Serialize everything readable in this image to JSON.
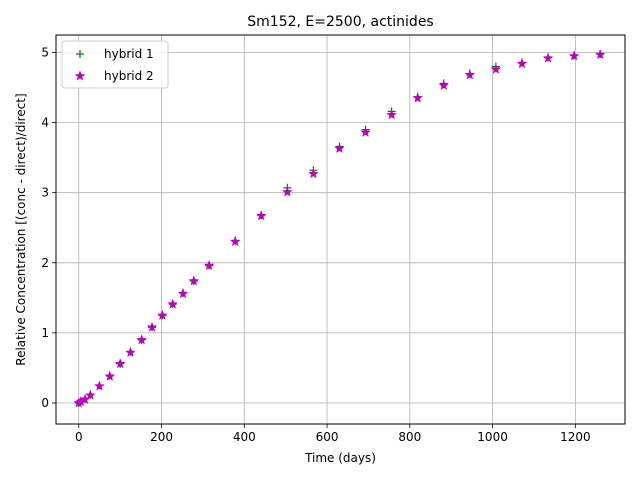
{
  "chart_data": {
    "type": "scatter",
    "title": "Sm152, E=2500, actinides",
    "xlabel": "Time (days)",
    "ylabel": "Relative Concentration [(conc - direct)/direct]",
    "xlim": [
      -55,
      1320
    ],
    "ylim": [
      -0.3,
      5.25
    ],
    "xticks": [
      0,
      200,
      400,
      600,
      800,
      1000,
      1200
    ],
    "yticks": [
      0,
      1,
      2,
      3,
      4,
      5
    ],
    "xtick_labels": [
      "0",
      "200",
      "400",
      "600",
      "800",
      "1000",
      "1200"
    ],
    "ytick_labels": [
      "0",
      "1",
      "2",
      "3",
      "4",
      "5"
    ],
    "grid": true,
    "legend_position": "top-left",
    "series": [
      {
        "name": "hybrid 1",
        "marker": "plus",
        "color": "#008000",
        "x": [
          0,
          5,
          15,
          28,
          50,
          75,
          100,
          125,
          152,
          177,
          202,
          227,
          252,
          278,
          315,
          378,
          441,
          504,
          567,
          630,
          693,
          756,
          819,
          882,
          945,
          1008,
          1071,
          1134,
          1197,
          1260
        ],
        "y": [
          0.0,
          0.02,
          0.06,
          0.12,
          0.25,
          0.39,
          0.56,
          0.73,
          0.9,
          1.08,
          1.25,
          1.41,
          1.57,
          1.74,
          1.96,
          2.32,
          2.68,
          3.07,
          3.32,
          3.66,
          3.9,
          4.16,
          4.37,
          4.56,
          4.7,
          4.8,
          4.86,
          4.93,
          4.96,
          4.98
        ]
      },
      {
        "name": "hybrid 2",
        "marker": "star",
        "color": "#c000c0",
        "x": [
          0,
          5,
          15,
          28,
          50,
          75,
          100,
          125,
          152,
          177,
          202,
          227,
          252,
          278,
          315,
          378,
          441,
          504,
          567,
          630,
          693,
          756,
          819,
          882,
          945,
          1008,
          1071,
          1134,
          1197,
          1260
        ],
        "y": [
          0.0,
          0.02,
          0.05,
          0.11,
          0.24,
          0.38,
          0.56,
          0.72,
          0.9,
          1.08,
          1.25,
          1.41,
          1.56,
          1.74,
          1.96,
          2.3,
          2.67,
          3.01,
          3.27,
          3.63,
          3.86,
          4.11,
          4.35,
          4.53,
          4.68,
          4.76,
          4.84,
          4.92,
          4.95,
          4.97
        ]
      }
    ]
  }
}
